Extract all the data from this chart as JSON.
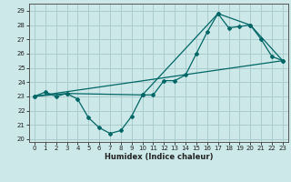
{
  "xlabel": "Humidex (Indice chaleur)",
  "background_color": "#cde8e8",
  "grid_color": "#aacccc",
  "line_color": "#006666",
  "xlim": [
    -0.5,
    23.5
  ],
  "ylim": [
    19.8,
    29.5
  ],
  "yticks": [
    20,
    21,
    22,
    23,
    24,
    25,
    26,
    27,
    28,
    29
  ],
  "xticks": [
    0,
    1,
    2,
    3,
    4,
    5,
    6,
    7,
    8,
    9,
    10,
    11,
    12,
    13,
    14,
    15,
    16,
    17,
    18,
    19,
    20,
    21,
    22,
    23
  ],
  "series1_x": [
    0,
    1,
    2,
    3,
    4,
    5,
    6,
    7,
    8,
    9,
    10,
    11,
    12,
    13,
    14,
    15,
    16,
    17,
    18,
    19,
    20,
    21,
    22,
    23
  ],
  "series1_y": [
    23.0,
    23.3,
    23.0,
    23.2,
    22.8,
    21.5,
    20.8,
    20.4,
    20.6,
    21.6,
    23.1,
    23.1,
    24.1,
    24.1,
    24.5,
    26.0,
    27.5,
    28.8,
    27.8,
    27.9,
    28.0,
    27.0,
    25.8,
    25.5
  ],
  "series2_x": [
    0,
    3,
    10,
    17,
    20,
    23
  ],
  "series2_y": [
    23.0,
    23.2,
    23.1,
    28.8,
    28.0,
    25.5
  ],
  "series3_x": [
    0,
    23
  ],
  "series3_y": [
    23.0,
    25.5
  ]
}
